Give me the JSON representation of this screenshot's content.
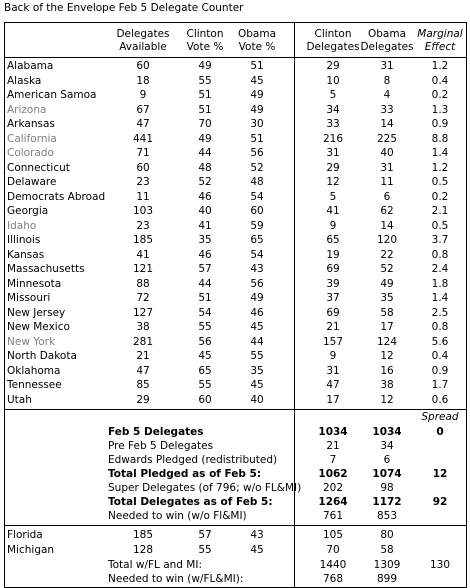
{
  "title": "Back of the Envelope Feb 5 Delegate Counter",
  "header": {
    "columns": [
      "Delegates Available",
      "Clinton Vote %",
      "Obama Vote %",
      "Clinton Delegates",
      "Obama Delegates",
      "Marginal Effect"
    ]
  },
  "table": {
    "rows": [
      {
        "cells": [
          "Alabama",
          60,
          49,
          51,
          29,
          31,
          1.2
        ]
      },
      {
        "cells": [
          "Alaska",
          18,
          55,
          45,
          10,
          8,
          0.4
        ]
      },
      {
        "cells": [
          "American Samoa",
          9,
          51,
          49,
          5,
          4,
          0.2
        ]
      },
      {
        "cells": [
          "Arizona",
          67,
          51,
          49,
          34,
          33,
          1.3
        ],
        "color": "#808080"
      },
      {
        "cells": [
          "Arkansas",
          47,
          70,
          30,
          33,
          14,
          0.9
        ]
      },
      {
        "cells": [
          "California",
          441,
          49,
          51,
          216,
          225,
          8.8
        ],
        "color": "#808080"
      },
      {
        "cells": [
          "Colorado",
          71,
          44,
          56,
          31,
          40,
          1.4
        ],
        "color": "#808080"
      },
      {
        "cells": [
          "Connecticut",
          60,
          48,
          52,
          29,
          31,
          1.2
        ]
      },
      {
        "cells": [
          "Delaware",
          23,
          52,
          48,
          12,
          11,
          0.5
        ]
      },
      {
        "cells": [
          "Democrats Abroad",
          11,
          46,
          54,
          5,
          6,
          0.2
        ]
      },
      {
        "cells": [
          "Georgia",
          103,
          40,
          60,
          41,
          62,
          2.1
        ]
      },
      {
        "cells": [
          "Idaho",
          23,
          41,
          59,
          9,
          14,
          0.5
        ],
        "color": "#808080"
      },
      {
        "cells": [
          "Illinois",
          185,
          35,
          65,
          65,
          120,
          3.7
        ]
      },
      {
        "cells": [
          "Kansas",
          41,
          46,
          54,
          19,
          22,
          0.8
        ]
      },
      {
        "cells": [
          "Massachusetts",
          121,
          57,
          43,
          69,
          52,
          2.4
        ]
      },
      {
        "cells": [
          "Minnesota",
          88,
          44,
          56,
          39,
          49,
          1.8
        ]
      },
      {
        "cells": [
          "Missouri",
          72,
          51,
          49,
          37,
          35,
          1.4
        ]
      },
      {
        "cells": [
          "New Jersey",
          127,
          54,
          46,
          69,
          58,
          2.5
        ]
      },
      {
        "cells": [
          "New Mexico",
          38,
          55,
          45,
          21,
          17,
          0.8
        ]
      },
      {
        "cells": [
          "New York",
          281,
          56,
          44,
          157,
          124,
          5.6
        ],
        "color": "#808080"
      },
      {
        "cells": [
          "North Dakota",
          21,
          45,
          55,
          9,
          12,
          0.4
        ]
      },
      {
        "cells": [
          "Oklahoma",
          47,
          65,
          35,
          31,
          16,
          0.9
        ]
      },
      {
        "cells": [
          "Tennessee",
          85,
          55,
          45,
          47,
          38,
          1.7
        ]
      },
      {
        "cells": [
          "Utah",
          29,
          60,
          40,
          17,
          12,
          0.6
        ]
      }
    ]
  },
  "summary": {
    "spread_header": "Spread",
    "rows": [
      {
        "label": "Feb 5 Delegates",
        "clinton": 1034,
        "obama": 1034,
        "spread": 0,
        "bold": true
      },
      {
        "label": "Pre Feb 5 Delegates",
        "clinton": 21,
        "obama": 34
      },
      {
        "label": "Edwards Pledged (redistributed)",
        "clinton": 7,
        "obama": 6
      },
      {
        "label": "Total Pledged as of Feb 5:",
        "clinton": 1062,
        "obama": 1074,
        "spread": 12,
        "bold": true
      },
      {
        "label": "Super Delegates (of 796; w/o FL&MI)",
        "clinton": 202,
        "obama": 98
      },
      {
        "label": "Total Delegates as of Feb 5:",
        "clinton": 1264,
        "obama": 1172,
        "spread": 92,
        "bold": true
      },
      {
        "label": "Needed to win (w/o Fl&MI)",
        "clinton": 761,
        "obama": 853
      }
    ]
  },
  "extra": {
    "rows": [
      {
        "cells": [
          "Florida",
          185,
          57,
          43,
          105,
          80
        ]
      },
      {
        "cells": [
          "Michigan",
          128,
          55,
          45,
          70,
          58
        ]
      }
    ],
    "totals": [
      {
        "label": "Total w/FL and MI:",
        "clinton": 1440,
        "obama": 1309,
        "spread": 130
      },
      {
        "label": "Needed to win (w/FL&MI):",
        "clinton": 768,
        "obama": 899
      }
    ]
  }
}
